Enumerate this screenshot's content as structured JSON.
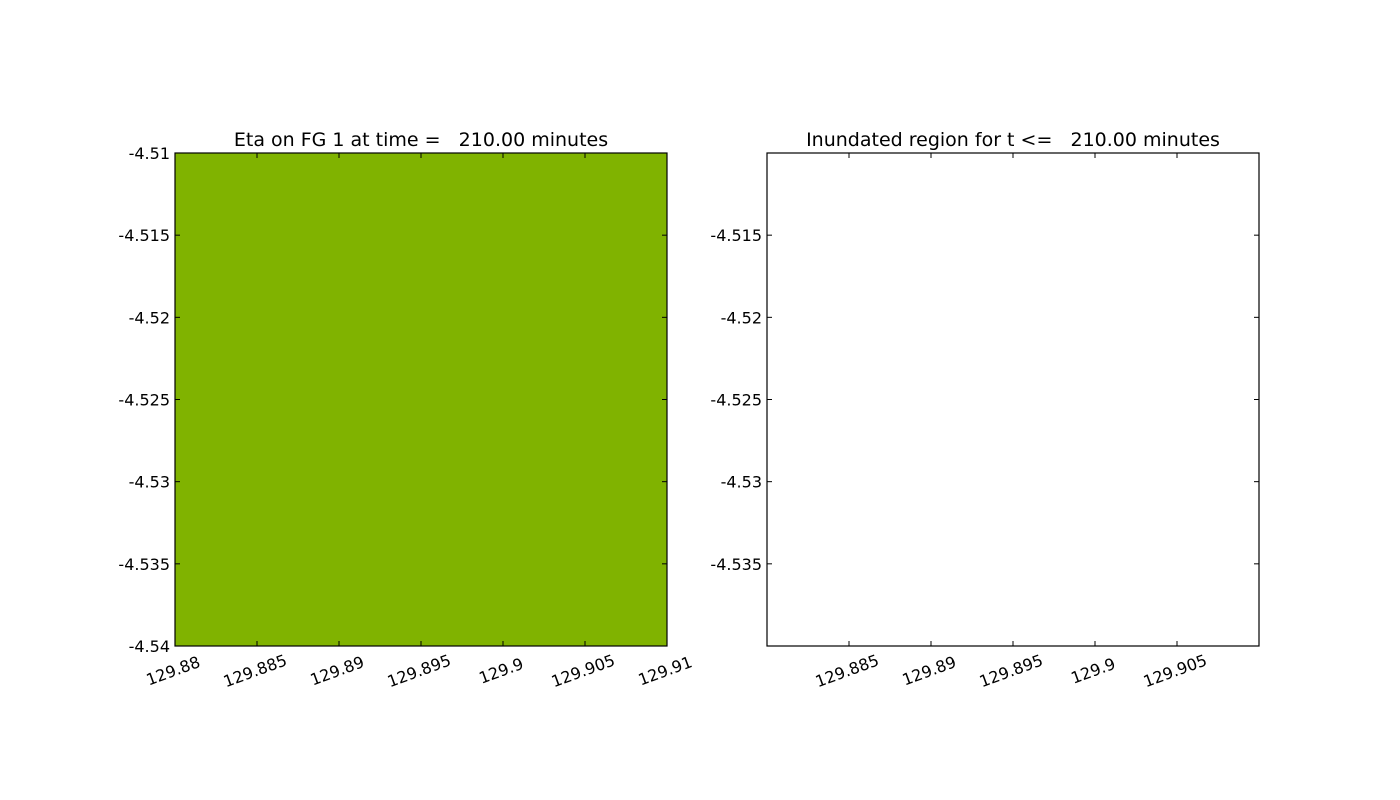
{
  "chart_data": [
    {
      "type": "heatmap",
      "title": "Eta on FG 1 at time =   210.00 minutes",
      "xlabel": "",
      "ylabel": "",
      "xlim": [
        129.88,
        129.91
      ],
      "ylim": [
        -4.54,
        -4.51
      ],
      "x_ticks": [
        129.88,
        129.885,
        129.89,
        129.895,
        129.9,
        129.905,
        129.91
      ],
      "x_tick_labels": [
        "129.88",
        "129.885",
        "129.89",
        "129.895",
        "129.9",
        "129.905",
        "129.91"
      ],
      "y_ticks": [
        -4.51,
        -4.515,
        -4.52,
        -4.525,
        -4.53,
        -4.535,
        -4.54
      ],
      "y_tick_labels": [
        "-4.51",
        "-4.515",
        "-4.52",
        "-4.525",
        "-4.53",
        "-4.535",
        "-4.54"
      ],
      "fill_color": "#80b300",
      "grid": false,
      "legend": "none"
    },
    {
      "type": "heatmap",
      "title": "Inundated region for t <=   210.00 minutes",
      "xlabel": "",
      "ylabel": "",
      "xlim": [
        129.88,
        129.91
      ],
      "ylim": [
        -4.54,
        -4.51
      ],
      "x_ticks": [
        129.885,
        129.89,
        129.895,
        129.9,
        129.905
      ],
      "x_tick_labels": [
        "129.885",
        "129.89",
        "129.895",
        "129.9",
        "129.905"
      ],
      "y_ticks": [
        -4.515,
        -4.52,
        -4.525,
        -4.53,
        -4.535
      ],
      "y_tick_labels": [
        "-4.515",
        "-4.52",
        "-4.525",
        "-4.53",
        "-4.535"
      ],
      "fill_color": "#ffffff",
      "grid": false,
      "legend": "none"
    }
  ]
}
